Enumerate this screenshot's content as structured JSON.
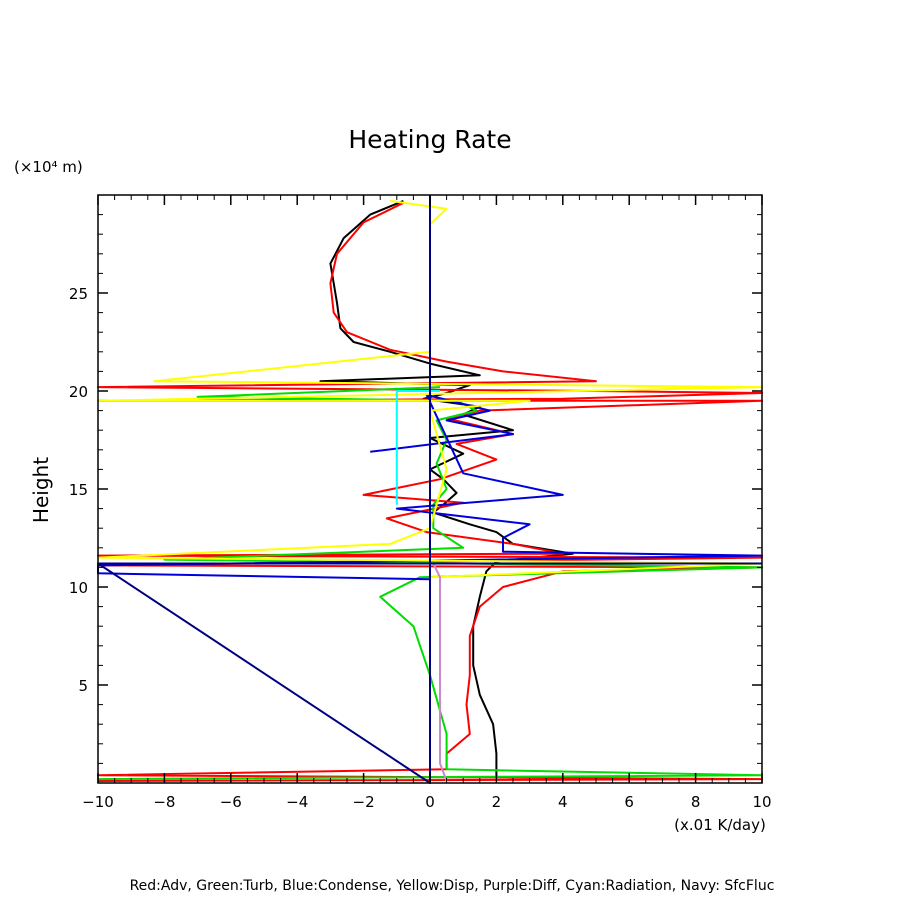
{
  "chart_data": {
    "type": "line",
    "title": "Heating Rate",
    "ylabel": "Height",
    "yunit_label": "(×10⁴ m)",
    "xunit_label": "(x.01 K/day)",
    "legend_text": "Red:Adv, Green:Turb, Blue:Condense, Yellow:Disp, Purple:Diff, Cyan:Radiation, Navy: SfcFluc",
    "xlim": [
      -10,
      10
    ],
    "ylim": [
      0,
      30
    ],
    "xticks": [
      -10,
      -8,
      -6,
      -4,
      -2,
      0,
      2,
      4,
      6,
      8,
      10
    ],
    "xtick_labels": [
      "−10",
      "−8",
      "−6",
      "−4",
      "−2",
      "0",
      "2",
      "4",
      "6",
      "8",
      "10"
    ],
    "yticks": [
      5,
      10,
      15,
      20,
      25
    ],
    "ytick_labels": [
      "5",
      "10",
      "15",
      "20",
      "25"
    ],
    "grid": false,
    "series": [
      {
        "color": "#000000",
        "points": [
          [
            -0.8,
            29.7
          ],
          [
            -1.8,
            29.0
          ],
          [
            -2.6,
            27.8
          ],
          [
            -3.0,
            26.5
          ],
          [
            -2.8,
            24.5
          ],
          [
            -2.7,
            23.2
          ],
          [
            -2.3,
            22.5
          ],
          [
            -1.2,
            22.0
          ],
          [
            0.0,
            21.4
          ],
          [
            1.5,
            20.8
          ],
          [
            -3.3,
            20.5
          ],
          [
            1.2,
            20.3
          ],
          [
            0.5,
            19.9
          ],
          [
            -0.2,
            19.6
          ],
          [
            1.5,
            19.2
          ],
          [
            1.0,
            18.8
          ],
          [
            2.5,
            18.0
          ],
          [
            0.0,
            17.6
          ],
          [
            1.0,
            16.8
          ],
          [
            0.0,
            16.0
          ],
          [
            0.4,
            15.5
          ],
          [
            0.8,
            14.8
          ],
          [
            0.4,
            14.2
          ],
          [
            0.1,
            13.8
          ],
          [
            1.2,
            13.2
          ],
          [
            2.0,
            12.8
          ],
          [
            2.5,
            12.2
          ],
          [
            4.3,
            11.7
          ],
          [
            2.0,
            11.3
          ],
          [
            1.7,
            10.8
          ],
          [
            1.5,
            9.5
          ],
          [
            1.3,
            8.0
          ],
          [
            1.3,
            6.0
          ],
          [
            1.5,
            4.5
          ],
          [
            1.9,
            3.0
          ],
          [
            2.0,
            1.5
          ],
          [
            2.0,
            0.3
          ]
        ]
      },
      {
        "color": "#ff0000",
        "points": [
          [
            -0.8,
            29.6
          ],
          [
            -2.0,
            28.6
          ],
          [
            -2.8,
            27.0
          ],
          [
            -3.0,
            25.5
          ],
          [
            -2.9,
            24.0
          ],
          [
            -2.5,
            23.0
          ],
          [
            -1.2,
            22.1
          ],
          [
            0.5,
            21.5
          ],
          [
            2.2,
            21.0
          ],
          [
            5.0,
            20.5
          ],
          [
            -10.0,
            20.2
          ],
          [
            5.0,
            20.0
          ],
          [
            10.0,
            19.9
          ],
          [
            4.0,
            19.6
          ],
          [
            -10.0,
            19.5
          ],
          [
            10.0,
            19.5
          ],
          [
            1.5,
            19.0
          ],
          [
            0.5,
            18.6
          ],
          [
            2.5,
            17.8
          ],
          [
            0.8,
            17.3
          ],
          [
            2.0,
            16.5
          ],
          [
            0.3,
            15.5
          ],
          [
            -2.0,
            14.7
          ],
          [
            1.0,
            14.3
          ],
          [
            -1.3,
            13.5
          ],
          [
            -0.1,
            12.8
          ],
          [
            2.5,
            12.2
          ],
          [
            4.0,
            11.7
          ],
          [
            -10.0,
            11.6
          ],
          [
            10.0,
            11.5
          ],
          [
            -10.0,
            11.1
          ],
          [
            10.0,
            11.0
          ],
          [
            4.0,
            10.8
          ],
          [
            2.2,
            10.0
          ],
          [
            1.5,
            9.0
          ],
          [
            1.2,
            7.5
          ],
          [
            1.2,
            5.5
          ],
          [
            1.1,
            4.0
          ],
          [
            1.2,
            2.5
          ],
          [
            0.5,
            1.5
          ],
          [
            0.5,
            0.7
          ],
          [
            -10.0,
            0.4
          ],
          [
            10.0,
            0.2
          ],
          [
            -10.0,
            0.1
          ]
        ]
      },
      {
        "color": "#00dd00",
        "points": [
          [
            0.3,
            20.2
          ],
          [
            -7.0,
            19.7
          ],
          [
            0.8,
            19.5
          ],
          [
            1.4,
            19.0
          ],
          [
            0.2,
            18.5
          ],
          [
            0.5,
            17.5
          ],
          [
            0.2,
            16.3
          ],
          [
            0.5,
            15.0
          ],
          [
            0.1,
            14.2
          ],
          [
            0.1,
            13.0
          ],
          [
            1.0,
            12.0
          ],
          [
            -8.0,
            11.4
          ],
          [
            10.0,
            11.0
          ],
          [
            -0.3,
            10.5
          ],
          [
            -1.5,
            9.5
          ],
          [
            -0.5,
            8.0
          ],
          [
            0.0,
            5.5
          ],
          [
            0.5,
            2.5
          ],
          [
            0.5,
            0.7
          ],
          [
            10.0,
            0.4
          ],
          [
            -10.0,
            0.2
          ]
        ]
      },
      {
        "color": "#0000dd",
        "points": [
          [
            -1.8,
            16.9
          ],
          [
            2.5,
            17.8
          ],
          [
            0.5,
            18.5
          ],
          [
            1.8,
            19.0
          ],
          [
            -0.1,
            19.8
          ],
          [
            1.0,
            15.8
          ],
          [
            4.0,
            14.7
          ],
          [
            -1.0,
            14.0
          ],
          [
            3.0,
            13.2
          ],
          [
            2.2,
            12.5
          ],
          [
            2.2,
            11.8
          ],
          [
            10.0,
            11.6
          ],
          [
            -10.0,
            11.1
          ],
          [
            -10.0,
            10.7
          ],
          [
            0.0,
            10.4
          ],
          [
            0.0,
            0.1
          ]
        ]
      },
      {
        "color": "#ffff00",
        "points": [
          [
            -1.2,
            29.7
          ],
          [
            0.5,
            29.3
          ],
          [
            0.0,
            28.5
          ],
          [
            0.0,
            22.0
          ],
          [
            -8.3,
            20.5
          ],
          [
            10.0,
            20.2
          ],
          [
            -10.0,
            19.5
          ],
          [
            3.0,
            19.5
          ],
          [
            0.0,
            19.0
          ],
          [
            0.5,
            16.0
          ],
          [
            0.0,
            13.0
          ],
          [
            -1.2,
            12.2
          ],
          [
            -10.0,
            11.5
          ],
          [
            10.0,
            11.2
          ],
          [
            0.0,
            10.5
          ],
          [
            0.0,
            1.0
          ],
          [
            0.0,
            0.1
          ]
        ]
      },
      {
        "color": "#cc88cc",
        "points": [
          [
            0.1,
            11.2
          ],
          [
            0.3,
            10.5
          ],
          [
            0.3,
            1.0
          ],
          [
            0.5,
            0.1
          ]
        ]
      },
      {
        "color": "#00ffff",
        "points": [
          [
            -1.0,
            14.2
          ],
          [
            -1.0,
            20.0
          ],
          [
            0.3,
            20.0
          ]
        ]
      },
      {
        "color": "#000080",
        "points": [
          [
            0.0,
            30.0
          ],
          [
            0.0,
            0.0
          ],
          [
            -10.0,
            11.2
          ],
          [
            10.0,
            11.2
          ]
        ]
      }
    ]
  }
}
